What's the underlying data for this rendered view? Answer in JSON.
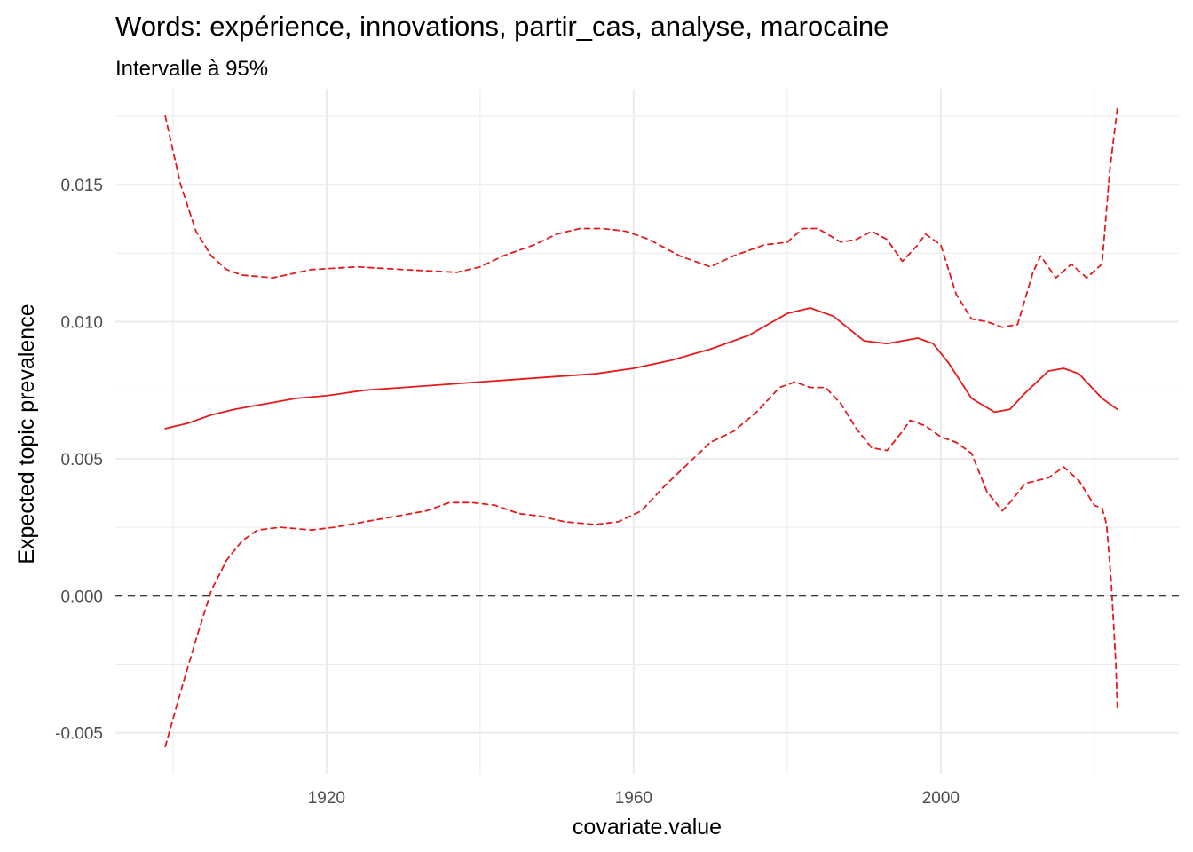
{
  "chart_data": {
    "type": "line",
    "title": "Words: expérience, innovations, partir_cas, analyse, marocaine",
    "subtitle": "Intervalle à 95%",
    "xlabel": "covariate.value",
    "ylabel": "Expected topic prevalence",
    "xlim": [
      1892.5,
      2031
    ],
    "ylim": [
      -0.0065,
      0.0185
    ],
    "x_ticks": [
      1920,
      1960,
      2000
    ],
    "x_tick_labels": [
      "1920",
      "1960",
      "2000"
    ],
    "y_ticks": [
      -0.005,
      0.0,
      0.005,
      0.01,
      0.015
    ],
    "y_tick_labels": [
      "-0.005",
      "0.000",
      "0.005",
      "0.010",
      "0.015"
    ],
    "grid": true,
    "reference_line": {
      "y": 0.0,
      "style": "dashed",
      "color": "#000000"
    },
    "colors": {
      "series": "#e41a1c",
      "grid": "#ebebeb",
      "reference": "#000000"
    },
    "series": [
      {
        "role": "estimate",
        "style": "solid",
        "x": [
          1899,
          1902,
          1905,
          1908,
          1912,
          1916,
          1920,
          1925,
          1930,
          1935,
          1940,
          1945,
          1950,
          1955,
          1960,
          1965,
          1970,
          1975,
          1980,
          1983,
          1986,
          1990,
          1993,
          1995,
          1997,
          1999,
          2001,
          2004,
          2007,
          2009,
          2011,
          2014,
          2016,
          2018,
          2021,
          2023
        ],
        "y": [
          0.0061,
          0.0063,
          0.0066,
          0.0068,
          0.007,
          0.0072,
          0.0073,
          0.0075,
          0.0076,
          0.0077,
          0.0078,
          0.0079,
          0.008,
          0.0081,
          0.0083,
          0.0086,
          0.009,
          0.0095,
          0.0103,
          0.0105,
          0.0102,
          0.0093,
          0.0092,
          0.0093,
          0.0094,
          0.0092,
          0.0085,
          0.0072,
          0.0067,
          0.0068,
          0.0074,
          0.0082,
          0.0083,
          0.0081,
          0.0072,
          0.0068
        ]
      },
      {
        "role": "upper_95",
        "style": "dashed",
        "x": [
          1899,
          1901,
          1903,
          1905,
          1907,
          1909,
          1913,
          1918,
          1924,
          1930,
          1937,
          1940,
          1943,
          1947,
          1950,
          1953,
          1956,
          1959,
          1962,
          1966,
          1970,
          1973,
          1977,
          1980,
          1982,
          1984,
          1987,
          1989,
          1991,
          1993,
          1995,
          1997,
          1998,
          2000,
          2002,
          2004,
          2006,
          2008,
          2010,
          2012,
          2013,
          2015,
          2017,
          2019,
          2021,
          2022,
          2023
        ],
        "y": [
          0.0175,
          0.015,
          0.0133,
          0.0124,
          0.0119,
          0.0117,
          0.0116,
          0.0119,
          0.012,
          0.0119,
          0.0118,
          0.012,
          0.0124,
          0.0128,
          0.0132,
          0.0134,
          0.0134,
          0.0133,
          0.013,
          0.0124,
          0.012,
          0.0124,
          0.0128,
          0.0129,
          0.0134,
          0.0134,
          0.0129,
          0.013,
          0.0133,
          0.013,
          0.0122,
          0.0128,
          0.0132,
          0.0128,
          0.011,
          0.0101,
          0.01,
          0.0098,
          0.0099,
          0.0118,
          0.0124,
          0.0116,
          0.0121,
          0.0116,
          0.0121,
          0.0155,
          0.0178
        ]
      },
      {
        "role": "lower_95",
        "style": "dashed",
        "x": [
          1899,
          1901,
          1903,
          1905,
          1907,
          1909,
          1911,
          1914,
          1918,
          1921,
          1925,
          1929,
          1933,
          1936,
          1939,
          1942,
          1945,
          1948,
          1951,
          1955,
          1958,
          1961,
          1964,
          1967,
          1970,
          1973,
          1976,
          1979,
          1981,
          1983,
          1985,
          1987,
          1989,
          1991,
          1993,
          1995,
          1996,
          1998,
          2000,
          2002,
          2004,
          2006,
          2008,
          2009,
          2011,
          2014,
          2016,
          2018,
          2020,
          2021,
          2021.6,
          2022.2,
          2022.8,
          2023
        ],
        "y": [
          -0.0055,
          -0.0035,
          -0.0016,
          0.0002,
          0.0013,
          0.002,
          0.0024,
          0.0025,
          0.0024,
          0.0025,
          0.0027,
          0.0029,
          0.0031,
          0.0034,
          0.0034,
          0.0033,
          0.003,
          0.0029,
          0.0027,
          0.0026,
          0.0027,
          0.0031,
          0.004,
          0.0048,
          0.0056,
          0.006,
          0.0067,
          0.0076,
          0.0078,
          0.0076,
          0.0076,
          0.007,
          0.0061,
          0.0054,
          0.0053,
          0.006,
          0.0064,
          0.0062,
          0.0058,
          0.0056,
          0.0052,
          0.0038,
          0.0031,
          0.0034,
          0.0041,
          0.0043,
          0.0047,
          0.0042,
          0.0033,
          0.0032,
          0.0026,
          0.0005,
          -0.0025,
          -0.0041
        ]
      }
    ]
  }
}
